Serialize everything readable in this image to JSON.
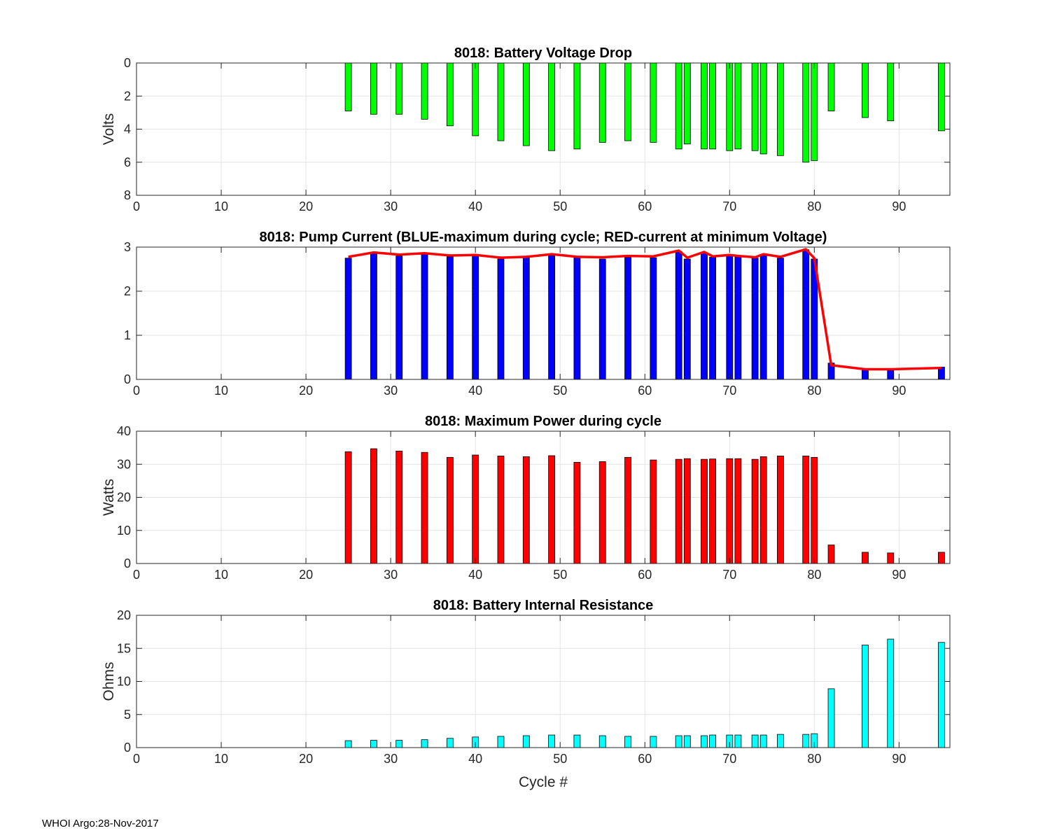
{
  "figure": {
    "footer": "WHOI Argo:28-Nov-2017"
  },
  "chart_data": [
    {
      "type": "bar",
      "title": "8018: Battery Voltage Drop",
      "xlabel": "",
      "ylabel": "Volts",
      "xlim": [
        0,
        96
      ],
      "ylim": [
        0,
        8
      ],
      "y_reversed": true,
      "xticks": [
        0,
        10,
        20,
        30,
        40,
        50,
        60,
        70,
        80,
        90
      ],
      "yticks": [
        0,
        2,
        4,
        6,
        8
      ],
      "grid": true,
      "bar_color": "#00ff00",
      "x": [
        25,
        28,
        31,
        34,
        37,
        40,
        43,
        46,
        49,
        52,
        55,
        58,
        61,
        64,
        65,
        67,
        68,
        70,
        71,
        73,
        74,
        76,
        79,
        80,
        82,
        86,
        89,
        95
      ],
      "values": [
        2.9,
        3.1,
        3.1,
        3.4,
        3.8,
        4.4,
        4.7,
        5.0,
        5.3,
        5.2,
        4.8,
        4.7,
        4.8,
        5.2,
        4.9,
        5.2,
        5.2,
        5.3,
        5.2,
        5.3,
        5.5,
        5.6,
        6.0,
        5.9,
        2.9,
        3.3,
        3.5,
        4.1
      ]
    },
    {
      "type": "bar+line",
      "title": "8018: Pump Current (BLUE-maximum during cycle; RED-current at minimum Voltage)",
      "xlabel": "",
      "ylabel": "",
      "xlim": [
        0,
        96
      ],
      "ylim": [
        0,
        3
      ],
      "xticks": [
        0,
        10,
        20,
        30,
        40,
        50,
        60,
        70,
        80,
        90
      ],
      "yticks": [
        0,
        1,
        2,
        3
      ],
      "grid": true,
      "bar_color": "#0000ff",
      "line_color": "#ff0000",
      "x": [
        25,
        28,
        31,
        34,
        37,
        40,
        43,
        46,
        49,
        52,
        55,
        58,
        61,
        64,
        65,
        67,
        68,
        70,
        71,
        73,
        74,
        76,
        79,
        80,
        82,
        86,
        89,
        95
      ],
      "series": [
        {
          "name": "maximum during cycle",
          "values": [
            2.75,
            2.85,
            2.8,
            2.84,
            2.78,
            2.8,
            2.73,
            2.76,
            2.81,
            2.76,
            2.73,
            2.77,
            2.76,
            2.9,
            2.73,
            2.86,
            2.77,
            2.8,
            2.78,
            2.75,
            2.81,
            2.75,
            2.94,
            2.73,
            0.37,
            0.23,
            0.21,
            0.28
          ]
        },
        {
          "name": "current at minimum Voltage",
          "values": [
            2.78,
            2.88,
            2.83,
            2.86,
            2.81,
            2.82,
            2.76,
            2.78,
            2.84,
            2.78,
            2.77,
            2.8,
            2.79,
            2.92,
            2.76,
            2.89,
            2.79,
            2.82,
            2.8,
            2.77,
            2.84,
            2.78,
            2.95,
            2.75,
            0.32,
            0.23,
            0.23,
            0.26
          ]
        }
      ]
    },
    {
      "type": "bar",
      "title": "8018: Maximum Power during cycle",
      "xlabel": "",
      "ylabel": "Watts",
      "xlim": [
        0,
        96
      ],
      "ylim": [
        0,
        40
      ],
      "xticks": [
        0,
        10,
        20,
        30,
        40,
        50,
        60,
        70,
        80,
        90
      ],
      "yticks": [
        0,
        10,
        20,
        30,
        40
      ],
      "grid": true,
      "bar_color": "#ff0000",
      "x": [
        25,
        28,
        31,
        34,
        37,
        40,
        43,
        46,
        49,
        52,
        55,
        58,
        61,
        64,
        65,
        67,
        68,
        70,
        71,
        73,
        74,
        76,
        79,
        80,
        82,
        86,
        89,
        95
      ],
      "values": [
        33.8,
        34.7,
        34.0,
        33.6,
        32.1,
        32.8,
        32.5,
        32.3,
        32.6,
        30.6,
        30.8,
        32.1,
        31.3,
        31.5,
        31.7,
        31.5,
        31.6,
        31.7,
        31.7,
        31.5,
        32.3,
        32.5,
        32.5,
        32.1,
        5.6,
        3.4,
        3.2,
        3.4
      ]
    },
    {
      "type": "bar",
      "title": "8018: Battery Internal Resistance",
      "xlabel": "Cycle #",
      "ylabel": "Ohms",
      "xlim": [
        0,
        96
      ],
      "ylim": [
        0,
        20
      ],
      "xticks": [
        0,
        10,
        20,
        30,
        40,
        50,
        60,
        70,
        80,
        90
      ],
      "yticks": [
        0,
        5,
        10,
        15,
        20
      ],
      "grid": true,
      "bar_color": "#00ffff",
      "x": [
        25,
        28,
        31,
        34,
        37,
        40,
        43,
        46,
        49,
        52,
        55,
        58,
        61,
        64,
        65,
        67,
        68,
        70,
        71,
        73,
        74,
        76,
        79,
        80,
        82,
        86,
        89,
        95
      ],
      "values": [
        1.05,
        1.1,
        1.1,
        1.2,
        1.4,
        1.6,
        1.7,
        1.8,
        1.9,
        1.9,
        1.8,
        1.7,
        1.7,
        1.8,
        1.8,
        1.8,
        1.9,
        1.9,
        1.9,
        1.9,
        1.9,
        2.0,
        2.0,
        2.1,
        8.9,
        15.5,
        16.4,
        15.9
      ]
    }
  ]
}
